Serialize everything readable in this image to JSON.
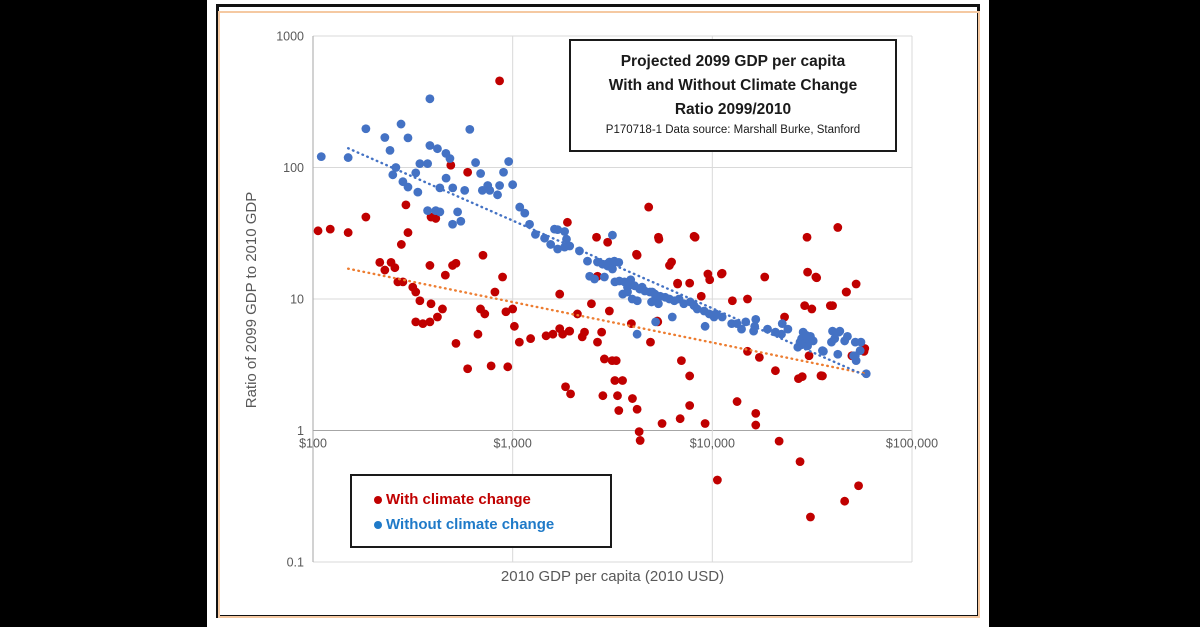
{
  "frame": {
    "outer_border_color": "#111111",
    "inner_border_color": "#f5c9a2"
  },
  "title_box": {
    "line1": "Projected 2099 GDP per capita",
    "line2": "With and Without Climate Change",
    "line3": "Ratio 2099/2010",
    "source": "P170718-1 Data source: Marshall Burke, Stanford"
  },
  "chart_data": {
    "type": "scatter",
    "x_axis": {
      "label": "2010 GDP per capita (2010 USD)",
      "scale": "log",
      "range": [
        100,
        100000
      ],
      "tick_values": [
        100,
        1000,
        10000,
        100000
      ],
      "tick_labels": [
        "$100",
        "$1,000",
        "$10,000",
        "$100,000"
      ],
      "axis_cross_y": 1
    },
    "y_axis": {
      "label": "Ratio of 2099 GDP to 2010 GDP",
      "scale": "log",
      "range": [
        0.1,
        1000
      ],
      "tick_values": [
        1000,
        100,
        10,
        1,
        0.1
      ],
      "tick_labels": [
        "1000",
        "100",
        "10",
        "1",
        "0.1"
      ]
    },
    "grid": {
      "color": "#d9d9d9",
      "axis_color": "#a6a6a6",
      "text_color": "#595959"
    },
    "legend": {
      "position": "bottom-left"
    },
    "series": [
      {
        "name": "With climate change",
        "color": "#c00000",
        "legend_color": "#c00000",
        "points": [
          [
            106,
            33
          ],
          [
            122,
            34
          ],
          [
            150,
            32
          ],
          [
            184,
            42
          ],
          [
            216,
            19
          ],
          [
            229,
            16.6
          ],
          [
            246,
            19
          ],
          [
            257,
            17.3
          ],
          [
            266,
            13.5
          ],
          [
            277,
            26
          ],
          [
            282,
            13.5
          ],
          [
            292,
            52
          ],
          [
            299,
            32
          ],
          [
            316,
            12.3
          ],
          [
            327,
            11.3
          ],
          [
            327,
            6.7
          ],
          [
            343,
            9.7
          ],
          [
            355,
            6.5
          ],
          [
            385,
            18
          ],
          [
            385,
            6.7
          ],
          [
            390,
            42
          ],
          [
            390,
            9.2
          ],
          [
            412,
            41
          ],
          [
            420,
            7.3
          ],
          [
            445,
            8.4
          ],
          [
            460,
            15.2
          ],
          [
            490,
            104
          ],
          [
            500,
            18
          ],
          [
            520,
            18.7
          ],
          [
            520,
            4.6
          ],
          [
            595,
            92
          ],
          [
            595,
            2.95
          ],
          [
            670,
            5.4
          ],
          [
            690,
            8.4
          ],
          [
            710,
            21.5
          ],
          [
            725,
            7.7
          ],
          [
            780,
            3.1
          ],
          [
            815,
            11.3
          ],
          [
            860,
            456
          ],
          [
            890,
            14.7
          ],
          [
            925,
            8.0
          ],
          [
            945,
            3.05
          ],
          [
            1000,
            8.4
          ],
          [
            1020,
            6.2
          ],
          [
            1080,
            4.7
          ],
          [
            1230,
            5.0
          ],
          [
            1470,
            5.25
          ],
          [
            1590,
            5.4
          ],
          [
            1720,
            5.95
          ],
          [
            1720,
            10.9
          ],
          [
            1780,
            5.4
          ],
          [
            1840,
            2.15
          ],
          [
            1880,
            38.3
          ],
          [
            1920,
            5.7
          ],
          [
            1930,
            5.7
          ],
          [
            1950,
            1.9
          ],
          [
            2110,
            7.7
          ],
          [
            2230,
            5.15
          ],
          [
            2290,
            5.6
          ],
          [
            2480,
            9.2
          ],
          [
            2630,
            29.5
          ],
          [
            2660,
            14.9
          ],
          [
            2660,
            4.7
          ],
          [
            2790,
            5.6
          ],
          [
            2830,
            1.84
          ],
          [
            2880,
            3.5
          ],
          [
            2990,
            27
          ],
          [
            3050,
            8.1
          ],
          [
            3150,
            3.4
          ],
          [
            3250,
            2.4
          ],
          [
            3300,
            3.4
          ],
          [
            3350,
            1.84
          ],
          [
            3400,
            1.42
          ],
          [
            3550,
            2.4
          ],
          [
            3930,
            6.5
          ],
          [
            3980,
            1.75
          ],
          [
            4170,
            21.9
          ],
          [
            4200,
            21.5
          ],
          [
            4200,
            1.45
          ],
          [
            4300,
            0.98
          ],
          [
            4350,
            0.84
          ],
          [
            4800,
            50
          ],
          [
            4900,
            4.7
          ],
          [
            5300,
            6.8
          ],
          [
            5330,
            6.7
          ],
          [
            5370,
            29.5
          ],
          [
            5400,
            28.5
          ],
          [
            5600,
            1.13
          ],
          [
            6100,
            18
          ],
          [
            6250,
            19.1
          ],
          [
            6700,
            13.2
          ],
          [
            6700,
            13
          ],
          [
            6900,
            1.23
          ],
          [
            7000,
            3.4
          ],
          [
            7700,
            13.2
          ],
          [
            7700,
            1.55
          ],
          [
            7700,
            2.6
          ],
          [
            8100,
            30
          ],
          [
            8200,
            29.5
          ],
          [
            8800,
            10.5
          ],
          [
            9200,
            1.13
          ],
          [
            9500,
            15.5
          ],
          [
            9700,
            14
          ],
          [
            10600,
            0.42
          ],
          [
            11100,
            15.5
          ],
          [
            11200,
            15.7
          ],
          [
            12600,
            9.7
          ],
          [
            13300,
            1.66
          ],
          [
            15000,
            10
          ],
          [
            15000,
            4.0
          ],
          [
            16500,
            1.35
          ],
          [
            16500,
            1.1
          ],
          [
            17200,
            3.6
          ],
          [
            18300,
            14.7
          ],
          [
            20700,
            2.85
          ],
          [
            21600,
            0.83
          ],
          [
            23000,
            7.3
          ],
          [
            27000,
            2.48
          ],
          [
            27500,
            0.58
          ],
          [
            28200,
            2.57
          ],
          [
            29000,
            8.9
          ],
          [
            29800,
            29.5
          ],
          [
            30000,
            16
          ],
          [
            30500,
            3.7
          ],
          [
            31000,
            0.22
          ],
          [
            31500,
            8.4
          ],
          [
            33000,
            14.7
          ],
          [
            33300,
            14.5
          ],
          [
            35000,
            2.61
          ],
          [
            35600,
            2.6
          ],
          [
            39000,
            8.9
          ],
          [
            40000,
            8.9
          ],
          [
            42500,
            35
          ],
          [
            46000,
            0.29
          ],
          [
            46800,
            11.3
          ],
          [
            47000,
            11.3
          ],
          [
            50000,
            3.7
          ],
          [
            52500,
            13
          ],
          [
            54000,
            0.38
          ],
          [
            57500,
            4.0
          ],
          [
            58000,
            4.2
          ]
        ],
        "trendline": {
          "style": "dotted",
          "color": "#ed7d31",
          "start": [
            150,
            17
          ],
          "end": [
            59000,
            2.7
          ]
        }
      },
      {
        "name": "Without climate change",
        "color": "#4472c4",
        "legend_color": "#1f7ac8",
        "points": [
          [
            110,
            121
          ],
          [
            150,
            119
          ],
          [
            184,
            197
          ],
          [
            229,
            169
          ],
          [
            243,
            135
          ],
          [
            251,
            88
          ],
          [
            260,
            100
          ],
          [
            276,
            214
          ],
          [
            282,
            78
          ],
          [
            299,
            168
          ],
          [
            299,
            71
          ],
          [
            327,
            91
          ],
          [
            335,
            65
          ],
          [
            343,
            107
          ],
          [
            375,
            107
          ],
          [
            375,
            47
          ],
          [
            385,
            333
          ],
          [
            385,
            147
          ],
          [
            412,
            47
          ],
          [
            420,
            139
          ],
          [
            432,
            70
          ],
          [
            432,
            46
          ],
          [
            463,
            128
          ],
          [
            464,
            83
          ],
          [
            485,
            117
          ],
          [
            500,
            37
          ],
          [
            501,
            70
          ],
          [
            530,
            46
          ],
          [
            550,
            39
          ],
          [
            575,
            67
          ],
          [
            610,
            195
          ],
          [
            652,
            109
          ],
          [
            691,
            90
          ],
          [
            705,
            67
          ],
          [
            750,
            73
          ],
          [
            768,
            67
          ],
          [
            840,
            62
          ],
          [
            860,
            73
          ],
          [
            900,
            92
          ],
          [
            955,
            111
          ],
          [
            1000,
            74
          ],
          [
            1085,
            50
          ],
          [
            1150,
            45
          ],
          [
            1215,
            37
          ],
          [
            1300,
            31
          ],
          [
            1445,
            29
          ],
          [
            1550,
            26
          ],
          [
            1620,
            34
          ],
          [
            1680,
            33.7
          ],
          [
            1680,
            24
          ],
          [
            1820,
            32.6
          ],
          [
            1820,
            24.8
          ],
          [
            1860,
            28.5
          ],
          [
            1930,
            25.3
          ],
          [
            2160,
            23.2
          ],
          [
            2370,
            19.4
          ],
          [
            2430,
            14.9
          ],
          [
            2570,
            14.2
          ],
          [
            2660,
            19.1
          ],
          [
            2820,
            18.4
          ],
          [
            2880,
            14.7
          ],
          [
            2990,
            17.8
          ],
          [
            3050,
            19.1
          ],
          [
            3160,
            30.6
          ],
          [
            3160,
            16.9
          ],
          [
            3230,
            19.4
          ],
          [
            3250,
            13.5
          ],
          [
            3400,
            19
          ],
          [
            3420,
            13.7
          ],
          [
            3560,
            10.9
          ],
          [
            3630,
            13.5
          ],
          [
            3760,
            12.3
          ],
          [
            3760,
            11.3
          ],
          [
            3850,
            13
          ],
          [
            3900,
            14
          ],
          [
            3970,
            10
          ],
          [
            4080,
            12.6
          ],
          [
            4200,
            5.4
          ],
          [
            4210,
            9.7
          ],
          [
            4330,
            11.9
          ],
          [
            4450,
            12.3
          ],
          [
            4590,
            11.5
          ],
          [
            4870,
            11.3
          ],
          [
            4960,
            9.5
          ],
          [
            5000,
            11.3
          ],
          [
            5160,
            10.9
          ],
          [
            5200,
            10.1
          ],
          [
            5200,
            6.7
          ],
          [
            5370,
            9.2
          ],
          [
            5480,
            10.5
          ],
          [
            5810,
            10.3
          ],
          [
            6100,
            10
          ],
          [
            6300,
            7.3
          ],
          [
            6450,
            9.7
          ],
          [
            6810,
            10
          ],
          [
            7200,
            9.2
          ],
          [
            7750,
            9.5
          ],
          [
            8100,
            8.9
          ],
          [
            8400,
            8.4
          ],
          [
            9100,
            8.1
          ],
          [
            9200,
            6.2
          ],
          [
            9650,
            7.7
          ],
          [
            10200,
            7.3
          ],
          [
            10400,
            7.7
          ],
          [
            11200,
            7.3
          ],
          [
            12500,
            6.5
          ],
          [
            13300,
            6.5
          ],
          [
            14000,
            5.9
          ],
          [
            14700,
            6.7
          ],
          [
            16100,
            5.7
          ],
          [
            16300,
            6.2
          ],
          [
            16500,
            7.0
          ],
          [
            18900,
            5.9
          ],
          [
            20700,
            5.6
          ],
          [
            22200,
            5.4
          ],
          [
            22400,
            6.5
          ],
          [
            23900,
            5.9
          ],
          [
            26800,
            4.3
          ],
          [
            27500,
            4.7
          ],
          [
            28000,
            5.0
          ],
          [
            28200,
            4.5
          ],
          [
            28500,
            5.6
          ],
          [
            29000,
            4.6
          ],
          [
            29500,
            5.3
          ],
          [
            30000,
            4.4
          ],
          [
            30500,
            4.9
          ],
          [
            31000,
            5.2
          ],
          [
            32000,
            4.8
          ],
          [
            35600,
            4.05
          ],
          [
            36000,
            4.0
          ],
          [
            39500,
            4.7
          ],
          [
            40000,
            5.7
          ],
          [
            41000,
            5.0
          ],
          [
            42500,
            3.8
          ],
          [
            43000,
            5.6
          ],
          [
            43500,
            5.7
          ],
          [
            46000,
            4.8
          ],
          [
            47500,
            5.2
          ],
          [
            51000,
            3.7
          ],
          [
            52000,
            4.7
          ],
          [
            52000,
            3.7
          ],
          [
            52500,
            3.4
          ],
          [
            55000,
            4.05
          ],
          [
            55500,
            4.7
          ],
          [
            59000,
            2.7
          ]
        ],
        "trendline": {
          "style": "dotted",
          "color": "#4472c4",
          "start": [
            150,
            140
          ],
          "end": [
            59000,
            2.6
          ]
        }
      }
    ]
  }
}
